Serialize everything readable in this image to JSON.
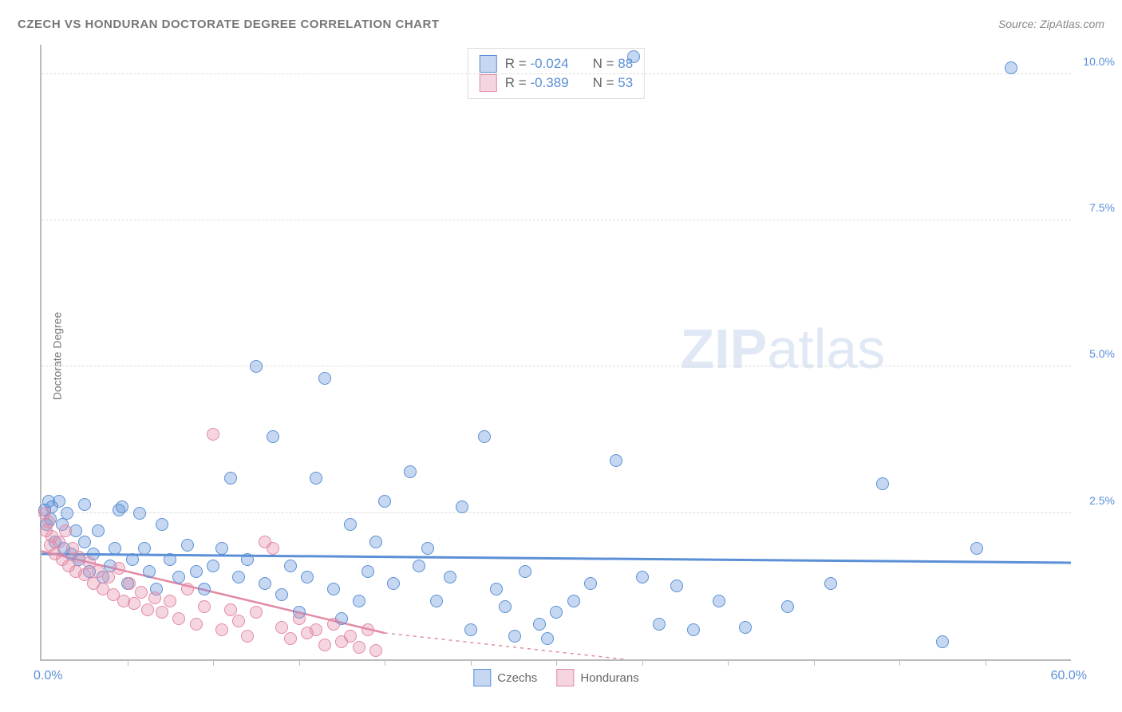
{
  "title": "CZECH VS HONDURAN DOCTORATE DEGREE CORRELATION CHART",
  "source": "Source: ZipAtlas.com",
  "ylabel": "Doctorate Degree",
  "watermark_bold": "ZIP",
  "watermark_rest": "atlas",
  "chart": {
    "type": "scatter",
    "xlim": [
      0,
      60
    ],
    "ylim": [
      0,
      10.5
    ],
    "x_min_label": "0.0%",
    "x_max_label": "60.0%",
    "y_ticks": [
      2.5,
      5.0,
      7.5,
      10.0
    ],
    "y_tick_labels": [
      "2.5%",
      "5.0%",
      "7.5%",
      "10.0%"
    ],
    "x_ticks": [
      5,
      10,
      15,
      20,
      25,
      30,
      35,
      40,
      45,
      50,
      55
    ],
    "grid_color": "#dddddd",
    "axis_color": "#bbbbbb",
    "background_color": "#ffffff",
    "point_radius": 8,
    "point_border_width": 1.5,
    "point_fill_opacity": 0.35,
    "series": [
      {
        "name": "Czechs",
        "color": "#5b8fd6",
        "fill": "rgba(91,143,214,0.35)",
        "R": "-0.024",
        "N": "88",
        "trend": {
          "x1": 0,
          "y1": 1.8,
          "x2": 60,
          "y2": 1.65,
          "width": 3,
          "dash": "none"
        },
        "points": [
          [
            0.2,
            2.55
          ],
          [
            0.3,
            2.3
          ],
          [
            0.4,
            2.7
          ],
          [
            0.5,
            2.4
          ],
          [
            0.6,
            2.6
          ],
          [
            0.8,
            2.0
          ],
          [
            1.0,
            2.7
          ],
          [
            1.2,
            2.3
          ],
          [
            1.3,
            1.9
          ],
          [
            1.5,
            2.5
          ],
          [
            1.7,
            1.8
          ],
          [
            2.0,
            2.2
          ],
          [
            2.2,
            1.7
          ],
          [
            2.5,
            2.0
          ],
          [
            2.8,
            1.5
          ],
          [
            3.0,
            1.8
          ],
          [
            3.3,
            2.2
          ],
          [
            3.6,
            1.4
          ],
          [
            4.0,
            1.6
          ],
          [
            4.3,
            1.9
          ],
          [
            4.7,
            2.6
          ],
          [
            5.0,
            1.3
          ],
          [
            5.3,
            1.7
          ],
          [
            5.7,
            2.5
          ],
          [
            6.0,
            1.9
          ],
          [
            6.3,
            1.5
          ],
          [
            6.7,
            1.2
          ],
          [
            7.0,
            2.3
          ],
          [
            7.5,
            1.7
          ],
          [
            8.0,
            1.4
          ],
          [
            8.5,
            1.95
          ],
          [
            9.0,
            1.5
          ],
          [
            9.5,
            1.2
          ],
          [
            10.0,
            1.6
          ],
          [
            10.5,
            1.9
          ],
          [
            11.0,
            3.1
          ],
          [
            11.5,
            1.4
          ],
          [
            12.0,
            1.7
          ],
          [
            12.5,
            5.0
          ],
          [
            13.0,
            1.3
          ],
          [
            13.5,
            3.8
          ],
          [
            14.0,
            1.1
          ],
          [
            14.5,
            1.6
          ],
          [
            15.0,
            0.8
          ],
          [
            15.5,
            1.4
          ],
          [
            16.0,
            3.1
          ],
          [
            16.5,
            4.8
          ],
          [
            17.0,
            1.2
          ],
          [
            17.5,
            0.7
          ],
          [
            18.0,
            2.3
          ],
          [
            18.5,
            1.0
          ],
          [
            19.0,
            1.5
          ],
          [
            19.5,
            2.0
          ],
          [
            20.0,
            2.7
          ],
          [
            20.5,
            1.3
          ],
          [
            21.5,
            3.2
          ],
          [
            22.0,
            1.6
          ],
          [
            22.5,
            1.9
          ],
          [
            23.0,
            1.0
          ],
          [
            23.8,
            1.4
          ],
          [
            24.5,
            2.6
          ],
          [
            25.0,
            0.5
          ],
          [
            25.8,
            3.8
          ],
          [
            26.5,
            1.2
          ],
          [
            27.0,
            0.9
          ],
          [
            27.6,
            0.4
          ],
          [
            28.2,
            1.5
          ],
          [
            29.0,
            0.6
          ],
          [
            29.5,
            0.35
          ],
          [
            30.0,
            0.8
          ],
          [
            31.0,
            1.0
          ],
          [
            32.0,
            1.3
          ],
          [
            33.5,
            3.4
          ],
          [
            35.0,
            1.4
          ],
          [
            36.0,
            0.6
          ],
          [
            37.0,
            1.25
          ],
          [
            38.0,
            0.5
          ],
          [
            39.5,
            1.0
          ],
          [
            41.0,
            0.55
          ],
          [
            43.5,
            0.9
          ],
          [
            46.0,
            1.3
          ],
          [
            49.0,
            3.0
          ],
          [
            52.5,
            0.3
          ],
          [
            54.5,
            1.9
          ],
          [
            56.5,
            10.1
          ],
          [
            34.5,
            10.3
          ],
          [
            2.5,
            2.65
          ],
          [
            4.5,
            2.55
          ]
        ]
      },
      {
        "name": "Hondurans",
        "color": "#e38aa5",
        "fill": "rgba(227,138,165,0.35)",
        "R": "-0.389",
        "N": "53",
        "trend_solid": {
          "x1": 0,
          "y1": 1.85,
          "x2": 20,
          "y2": 0.45,
          "width": 2.5
        },
        "trend_dashed": {
          "x1": 20,
          "y1": 0.45,
          "x2": 34,
          "y2": 0.0,
          "width": 1.5
        },
        "points": [
          [
            0.2,
            2.5
          ],
          [
            0.3,
            2.2
          ],
          [
            0.4,
            2.35
          ],
          [
            0.5,
            1.95
          ],
          [
            0.6,
            2.1
          ],
          [
            0.8,
            1.8
          ],
          [
            1.0,
            2.0
          ],
          [
            1.2,
            1.7
          ],
          [
            1.4,
            2.2
          ],
          [
            1.6,
            1.6
          ],
          [
            1.8,
            1.9
          ],
          [
            2.0,
            1.5
          ],
          [
            2.2,
            1.75
          ],
          [
            2.5,
            1.45
          ],
          [
            2.8,
            1.65
          ],
          [
            3.0,
            1.3
          ],
          [
            3.3,
            1.5
          ],
          [
            3.6,
            1.2
          ],
          [
            3.9,
            1.4
          ],
          [
            4.2,
            1.1
          ],
          [
            4.5,
            1.55
          ],
          [
            4.8,
            1.0
          ],
          [
            5.1,
            1.3
          ],
          [
            5.4,
            0.95
          ],
          [
            5.8,
            1.15
          ],
          [
            6.2,
            0.85
          ],
          [
            6.6,
            1.05
          ],
          [
            7.0,
            0.8
          ],
          [
            7.5,
            1.0
          ],
          [
            8.0,
            0.7
          ],
          [
            8.5,
            1.2
          ],
          [
            9.0,
            0.6
          ],
          [
            9.5,
            0.9
          ],
          [
            10.0,
            3.85
          ],
          [
            10.5,
            0.5
          ],
          [
            11.0,
            0.85
          ],
          [
            11.5,
            0.65
          ],
          [
            12.0,
            0.4
          ],
          [
            12.5,
            0.8
          ],
          [
            13.0,
            2.0
          ],
          [
            13.5,
            1.9
          ],
          [
            14.0,
            0.55
          ],
          [
            14.5,
            0.35
          ],
          [
            15.0,
            0.7
          ],
          [
            15.5,
            0.45
          ],
          [
            16.0,
            0.5
          ],
          [
            16.5,
            0.25
          ],
          [
            17.0,
            0.6
          ],
          [
            17.5,
            0.3
          ],
          [
            18.0,
            0.4
          ],
          [
            18.5,
            0.2
          ],
          [
            19.0,
            0.5
          ],
          [
            19.5,
            0.15
          ]
        ]
      }
    ]
  },
  "legend_bottom": [
    {
      "label": "Czechs",
      "swatch_fill": "rgba(91,143,214,0.35)",
      "swatch_border": "#5b8fd6"
    },
    {
      "label": "Hondurans",
      "swatch_fill": "rgba(227,138,165,0.35)",
      "swatch_border": "#e38aa5"
    }
  ]
}
